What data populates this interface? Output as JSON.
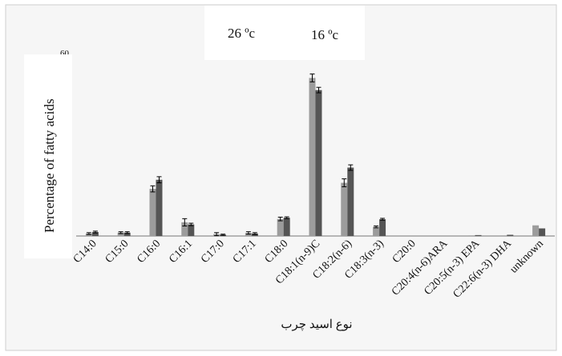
{
  "chart_data": {
    "type": "bar",
    "title": "",
    "xlabel": "نوع اسید چرب",
    "ylabel": "Percentage of fatty acids",
    "y_top_tick": "60",
    "ylim": [
      0,
      60
    ],
    "grid": false,
    "legend_position": "top",
    "categories": [
      "C14:0",
      "C15:0",
      "C16:0",
      "C16:1",
      "C17:0",
      "C17:1",
      "C18:0",
      "C18:1(n-9)C",
      "C18:2(n-6)",
      "C18:3(n-3)",
      "C20:0",
      "C20:4(n-6)ARA",
      "C20:5(n-3) EPA",
      "C22:6(n-3) DHA",
      "unknown"
    ],
    "series": [
      {
        "name": "26 ºc",
        "color": "#9c9c9c",
        "values": [
          0.8,
          1.1,
          15.5,
          4.5,
          0.6,
          1.0,
          5.6,
          52.0,
          17.5,
          3.0,
          0.0,
          0.0,
          0.2,
          0.2,
          3.5
        ],
        "errors": [
          0.3,
          0.3,
          1.0,
          1.2,
          0.5,
          0.4,
          0.6,
          1.3,
          1.3,
          0.3,
          0.0,
          0.0,
          0.0,
          0.0,
          0.0
        ]
      },
      {
        "name": "16 ºc",
        "color": "#555555",
        "values": [
          1.3,
          1.1,
          18.5,
          3.8,
          0.4,
          0.8,
          6.0,
          48.0,
          22.5,
          5.5,
          0.0,
          0.0,
          0.3,
          0.4,
          2.5
        ],
        "errors": [
          0.3,
          0.3,
          1.0,
          0.4,
          0.2,
          0.3,
          0.3,
          0.9,
          0.9,
          0.3,
          0.0,
          0.0,
          0.0,
          0.0,
          0.0
        ]
      }
    ]
  }
}
